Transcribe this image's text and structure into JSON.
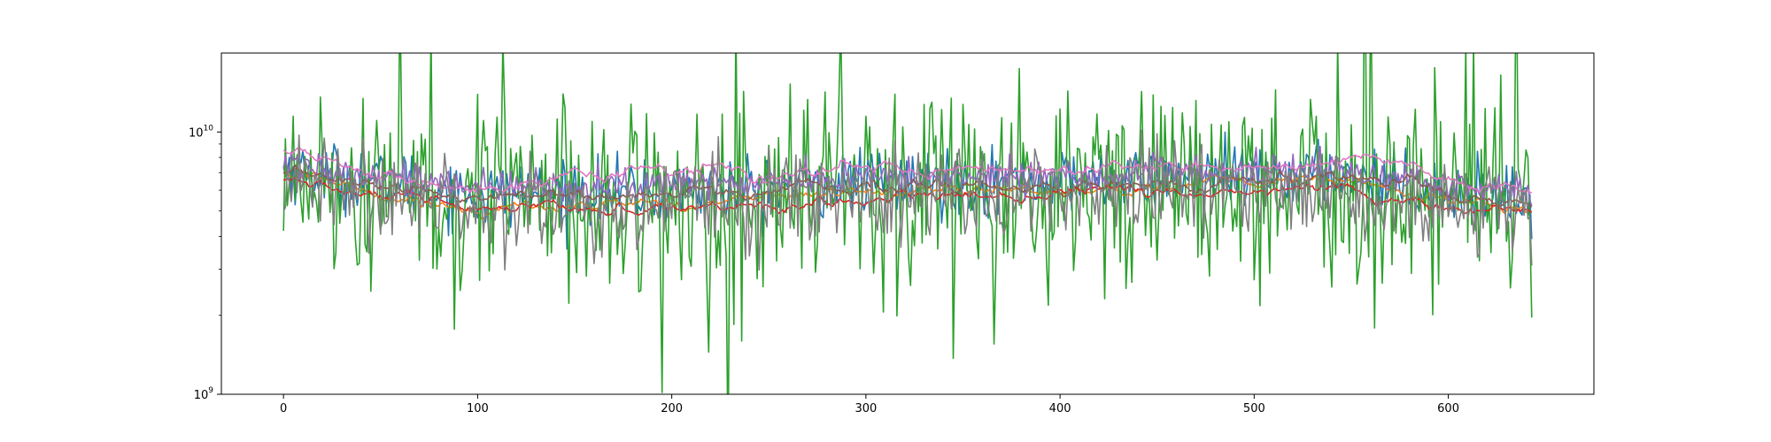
{
  "chart_data": {
    "type": "line",
    "title": "",
    "xlabel": "",
    "ylabel": "",
    "xlim": [
      -32,
      675
    ],
    "ylim": [
      1000000000,
      20000000000
    ],
    "yscale": "log",
    "grid": false,
    "x_ticks": [
      0,
      100,
      200,
      300,
      400,
      500,
      600
    ],
    "x_tick_labels": [
      "0",
      "100",
      "200",
      "300",
      "400",
      "500",
      "600"
    ],
    "y_ticks": [
      {
        "value": 1000000000,
        "base": "10",
        "exp": "9"
      },
      {
        "value": 10000000000,
        "base": "10",
        "exp": "10"
      }
    ],
    "x": {
      "start": 0,
      "end": 643,
      "count": 644
    },
    "series": [
      {
        "color": "#1f77b4",
        "style": "noisy-medium",
        "profile": [
          [
            0,
            7200000000.0
          ],
          [
            100,
            5800000000.0
          ],
          [
            200,
            5900000000.0
          ],
          [
            300,
            6400000000.0
          ],
          [
            400,
            6500000000.0
          ],
          [
            500,
            6600000000.0
          ],
          [
            540,
            7000000000.0
          ],
          [
            600,
            5900000000.0
          ],
          [
            643,
            5500000000.0
          ]
        ]
      },
      {
        "color": "#ff7f0e",
        "style": "smooth",
        "profile": [
          [
            0,
            6900000000.0
          ],
          [
            50,
            5800000000.0
          ],
          [
            100,
            5100000000.0
          ],
          [
            200,
            5400000000.0
          ],
          [
            300,
            5900000000.0
          ],
          [
            400,
            6000000000.0
          ],
          [
            500,
            6400000000.0
          ],
          [
            540,
            6600000000.0
          ],
          [
            600,
            5400000000.0
          ],
          [
            643,
            5200000000.0
          ]
        ]
      },
      {
        "color": "#2ca02c",
        "style": "noisy-high",
        "profile": [
          [
            0,
            6800000000.0
          ],
          [
            100,
            5500000000.0
          ],
          [
            200,
            5600000000.0
          ],
          [
            300,
            6000000000.0
          ],
          [
            400,
            6100000000.0
          ],
          [
            500,
            6200000000.0
          ],
          [
            600,
            5500000000.0
          ],
          [
            643,
            5200000000.0
          ]
        ]
      },
      {
        "color": "#d62728",
        "style": "smooth",
        "profile": [
          [
            0,
            6500000000.0
          ],
          [
            50,
            5600000000.0
          ],
          [
            100,
            4900000000.0
          ],
          [
            200,
            5200000000.0
          ],
          [
            300,
            5500000000.0
          ],
          [
            400,
            5800000000.0
          ],
          [
            500,
            6000000000.0
          ],
          [
            540,
            6200000000.0
          ],
          [
            600,
            5100000000.0
          ],
          [
            643,
            4900000000.0
          ]
        ]
      },
      {
        "color": "#9467bd",
        "style": "noisy-low",
        "profile": [
          [
            0,
            7600000000.0
          ],
          [
            100,
            6100000000.0
          ],
          [
            200,
            6300000000.0
          ],
          [
            300,
            6700000000.0
          ],
          [
            400,
            6800000000.0
          ],
          [
            500,
            7000000000.0
          ],
          [
            540,
            7200000000.0
          ],
          [
            600,
            6200000000.0
          ],
          [
            643,
            5900000000.0
          ]
        ]
      },
      {
        "color": "#8c564b",
        "style": "smooth",
        "profile": [
          [
            0,
            7000000000.0
          ],
          [
            100,
            5600000000.0
          ],
          [
            200,
            5700000000.0
          ],
          [
            300,
            6100000000.0
          ],
          [
            400,
            6300000000.0
          ],
          [
            500,
            6600000000.0
          ],
          [
            540,
            6900000000.0
          ],
          [
            600,
            5700000000.0
          ],
          [
            643,
            5500000000.0
          ]
        ]
      },
      {
        "color": "#e377c2",
        "style": "smooth",
        "profile": [
          [
            0,
            8500000000.0
          ],
          [
            20,
            8000000000.0
          ],
          [
            50,
            6600000000.0
          ],
          [
            100,
            6400000000.0
          ],
          [
            200,
            6900000000.0
          ],
          [
            300,
            7200000000.0
          ],
          [
            400,
            7200000000.0
          ],
          [
            500,
            7400000000.0
          ],
          [
            540,
            7900000000.0
          ],
          [
            580,
            7400000000.0
          ],
          [
            620,
            6300000000.0
          ],
          [
            643,
            6200000000.0
          ]
        ]
      },
      {
        "color": "#7f7f7f",
        "style": "noisy-medium-high",
        "profile": [
          [
            0,
            6600000000.0
          ],
          [
            100,
            5100000000.0
          ],
          [
            200,
            5300000000.0
          ],
          [
            300,
            5700000000.0
          ],
          [
            400,
            5900000000.0
          ],
          [
            500,
            6000000000.0
          ],
          [
            600,
            5000000000.0
          ],
          [
            643,
            4800000000.0
          ]
        ]
      }
    ]
  }
}
